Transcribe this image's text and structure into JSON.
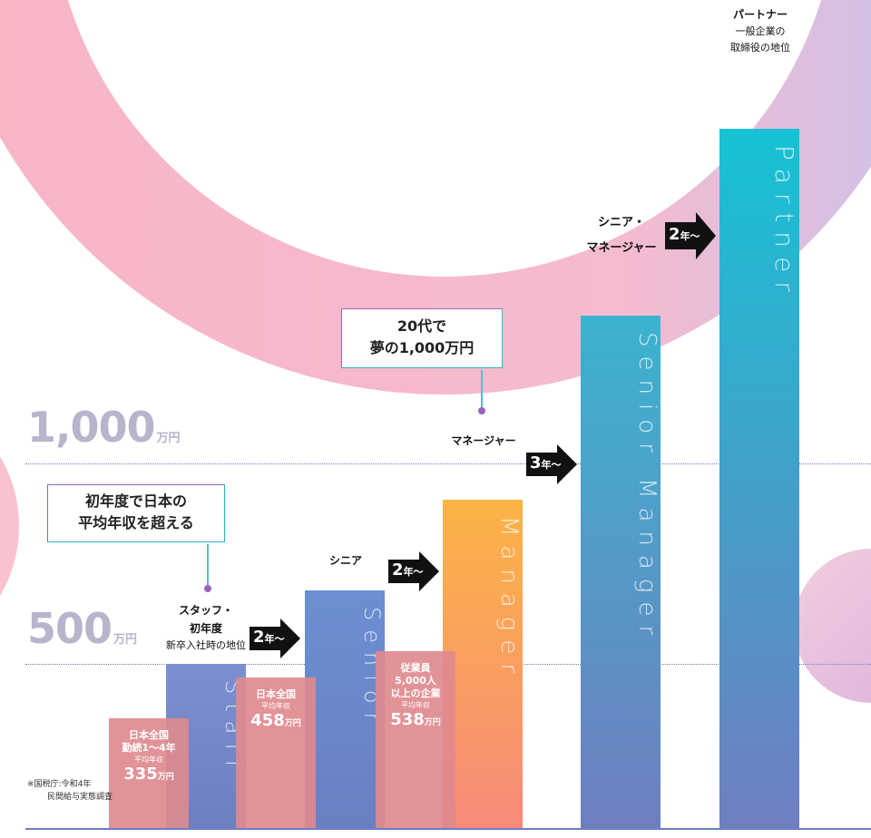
{
  "chart_data": {
    "type": "bar",
    "ylim": [
      0,
      1600
    ],
    "unit": "万円",
    "y_ref_lines": [
      {
        "value": 500,
        "label": "500",
        "unit": "万円"
      },
      {
        "value": 1000,
        "label": "1,000",
        "unit": "万円"
      }
    ],
    "career_bars": [
      {
        "english": "Staff",
        "title_lines": [
          "スタッフ・",
          "初年度"
        ],
        "sub": "新卒入社時の地位",
        "value": 500,
        "gradient": [
          "#7d8fd0",
          "#6b7fc2"
        ]
      },
      {
        "english": "Senior",
        "title_lines": [
          "シニア"
        ],
        "sub": "",
        "value": 725,
        "gradient": [
          "#6b8fd2",
          "#6a7fc2"
        ]
      },
      {
        "english": "Manager",
        "title_lines": [
          "マネージャー"
        ],
        "sub": "",
        "value": 1000,
        "gradient": [
          "#fbb445",
          "#f78a7a"
        ]
      },
      {
        "english": "Senior Manager",
        "title_lines": [
          "シニア・",
          "マネージャー"
        ],
        "sub": "",
        "value": 1560,
        "gradient": [
          "#3bb3cf",
          "#6f7ec0"
        ]
      },
      {
        "english": "Partner",
        "title_lines": [
          "パートナー"
        ],
        "sub_lines": [
          "一般企業の",
          "取締役の地位"
        ],
        "value": 2130,
        "gradient": [
          "#16c2d4",
          "#6f7ec0"
        ]
      }
    ],
    "comparison_bars": [
      {
        "lines": [
          "日本全国",
          "勤続1～4年"
        ],
        "small": "平均年収",
        "value": 335,
        "value_label": "335",
        "unit": "万円"
      },
      {
        "lines": [
          "日本全国"
        ],
        "small": "平均年収",
        "value": 458,
        "value_label": "458",
        "unit": "万円"
      },
      {
        "lines": [
          "従業員",
          "5,000人",
          "以上の企業"
        ],
        "small": "平均年収",
        "value": 538,
        "value_label": "538",
        "unit": "万円"
      }
    ],
    "steps": [
      {
        "num": "2",
        "suffix": "年～"
      },
      {
        "num": "2",
        "suffix": "年～"
      },
      {
        "num": "3",
        "suffix": "年～"
      },
      {
        "num": "2",
        "suffix": "年～"
      }
    ],
    "callouts": [
      {
        "lines": [
          "初年度で日本の",
          "平均年収を超える"
        ]
      },
      {
        "lines": [
          "20代で",
          "夢の1,000万円"
        ]
      }
    ],
    "source_note": [
      "※国税庁:令和4年",
      "民間給与実態調査"
    ],
    "colors": {
      "pink": "#f6a8b8",
      "comparison": "#de8a8e",
      "axis_text": "#b7b4cc",
      "ref_line": "#6a7fc0"
    }
  }
}
